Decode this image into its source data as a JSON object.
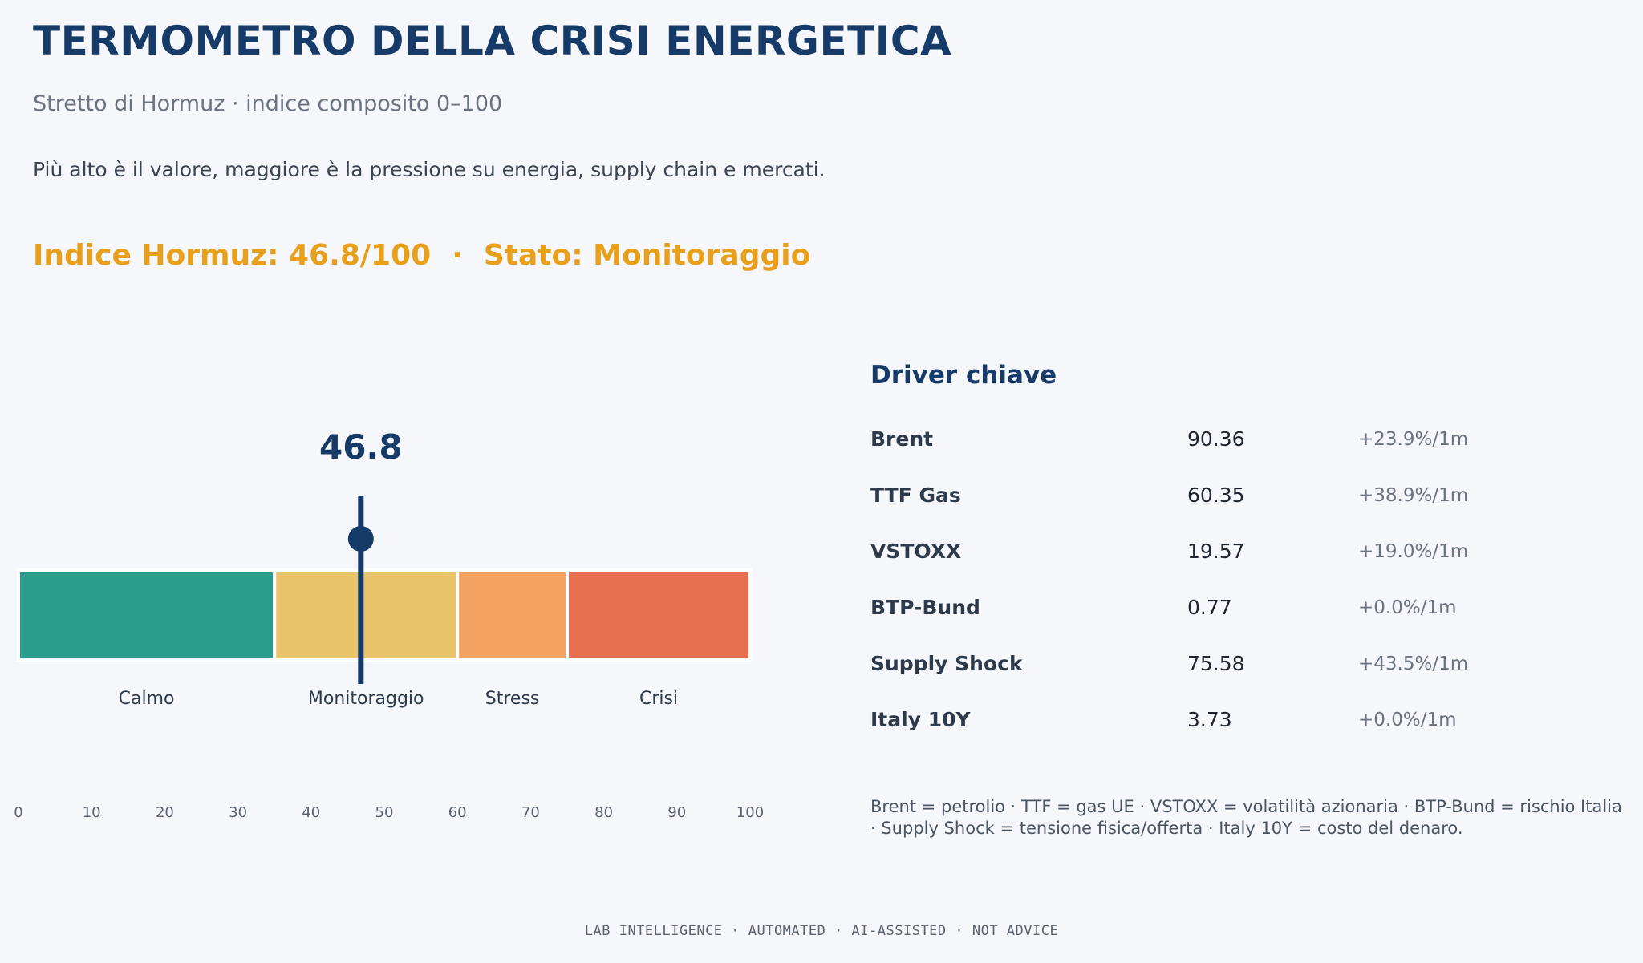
{
  "header": {
    "title": "TERMOMETRO DELLA CRISI ENERGETICA",
    "subtitle": "Stretto di Hormuz · indice composito 0–100",
    "description": "Più alto è il valore, maggiore è la pressione su energia, supply chain e mercati."
  },
  "status": {
    "index_label": "Indice Hormuz: 46.8/100",
    "separator": "·",
    "state_label": "Stato: Monitoraggio",
    "color": "#e89f1a"
  },
  "chart_data": {
    "type": "bar",
    "orientation": "horizontal",
    "value": 46.8,
    "value_label": "46.8",
    "xlim": [
      0,
      100
    ],
    "ticks": [
      0,
      10,
      20,
      30,
      40,
      50,
      60,
      70,
      80,
      90,
      100
    ],
    "zones": [
      {
        "name": "Calmo",
        "from": 0,
        "to": 35,
        "color": "#2a9d8f"
      },
      {
        "name": "Monitoraggio",
        "from": 35,
        "to": 60,
        "color": "#e9c46a"
      },
      {
        "name": "Stress",
        "from": 60,
        "to": 75,
        "color": "#f4a261"
      },
      {
        "name": "Crisi",
        "from": 75,
        "to": 100,
        "color": "#e76f51"
      }
    ],
    "marker_color": "#163b68"
  },
  "drivers": {
    "title": "Driver chiave",
    "items": [
      {
        "name": "Brent",
        "value": "90.36",
        "change": "+23.9%/1m"
      },
      {
        "name": "TTF Gas",
        "value": "60.35",
        "change": "+38.9%/1m"
      },
      {
        "name": "VSTOXX",
        "value": "19.57",
        "change": "+19.0%/1m"
      },
      {
        "name": "BTP-Bund",
        "value": "0.77",
        "change": "+0.0%/1m"
      },
      {
        "name": "Supply Shock",
        "value": "75.58",
        "change": "+43.5%/1m"
      },
      {
        "name": "Italy 10Y",
        "value": "3.73",
        "change": "+0.0%/1m"
      }
    ],
    "note": "Brent = petrolio · TTF = gas UE · VSTOXX = volatilità azionaria · BTP-Bund = rischio Italia · Supply Shock = tensione fisica/offerta · Italy 10Y = costo del denaro."
  },
  "footer": {
    "text": "LAB INTELLIGENCE · AUTOMATED · AI-ASSISTED · NOT ADVICE"
  }
}
